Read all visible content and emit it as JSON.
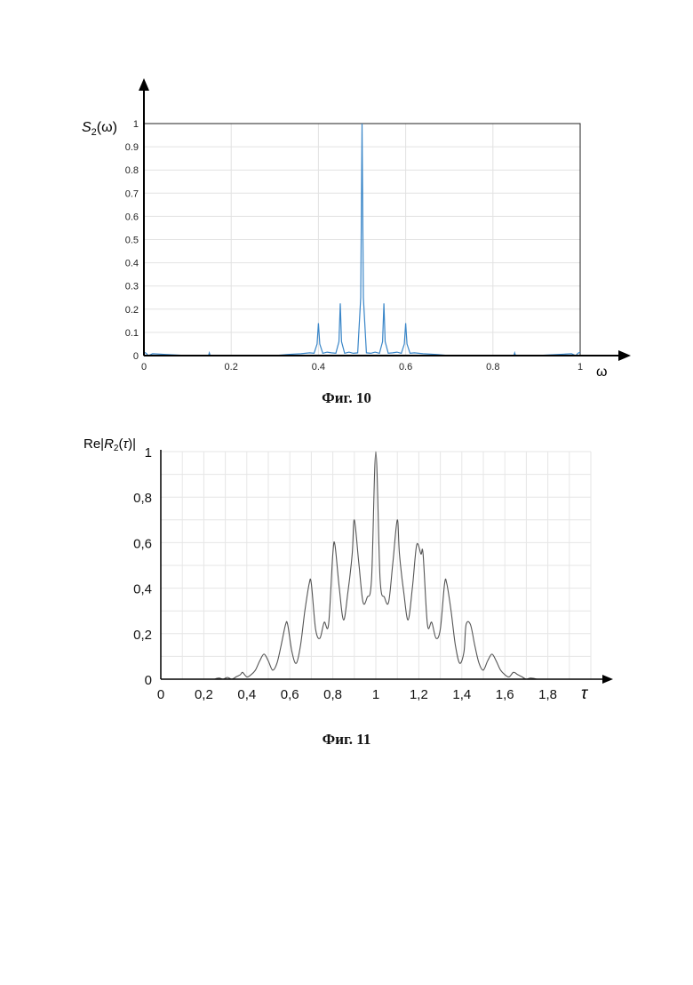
{
  "figures": [
    {
      "caption": "Фиг. 10",
      "ylabel_prefix": "S",
      "ylabel_sub": "2",
      "ylabel_suffix": "(ω)",
      "xlabel": "ω",
      "line_color": "#3a86c8",
      "chart_data": {
        "type": "line",
        "xlim": [
          0,
          1
        ],
        "ylim": [
          0,
          1
        ],
        "grid": true,
        "x_ticks": [
          0,
          0.2,
          0.4,
          0.6,
          0.8,
          1
        ],
        "x_tick_labels": [
          "0",
          "0.2",
          "0.4",
          "0.6",
          "0.8",
          "1"
        ],
        "y_ticks": [
          0,
          0.1,
          0.2,
          0.3,
          0.4,
          0.5,
          0.6,
          0.7,
          0.8,
          0.9,
          1
        ],
        "y_tick_labels": [
          "0",
          "0.1",
          "0.2",
          "0.3",
          "0.4",
          "0.5",
          "0.6",
          "0.7",
          "0.8",
          "0.9",
          "1"
        ],
        "series": [
          {
            "x": [
              0,
              0.005,
              0.01,
              0.02,
              0.05,
              0.1,
              0.148,
              0.15,
              0.152,
              0.2,
              0.25,
              0.3,
              0.33,
              0.36,
              0.38,
              0.39,
              0.397,
              0.4,
              0.403,
              0.41,
              0.42,
              0.43,
              0.44,
              0.447,
              0.45,
              0.453,
              0.46,
              0.47,
              0.48,
              0.49,
              0.497,
              0.5,
              0.503,
              0.51,
              0.52,
              0.53,
              0.54,
              0.547,
              0.55,
              0.553,
              0.56,
              0.57,
              0.58,
              0.59,
              0.597,
              0.6,
              0.603,
              0.61,
              0.62,
              0.64,
              0.67,
              0.7,
              0.75,
              0.8,
              0.848,
              0.85,
              0.852,
              0.9,
              0.95,
              0.98,
              0.99,
              0.995,
              1
            ],
            "y": [
              0.015,
              0.01,
              0,
              0.008,
              0.005,
              0,
              0,
              0.012,
              0,
              0,
              0,
              0,
              0.005,
              0.008,
              0.012,
              0.01,
              0.05,
              0.14,
              0.05,
              0.01,
              0.015,
              0.012,
              0.01,
              0.06,
              0.225,
              0.06,
              0.01,
              0.015,
              0.01,
              0.012,
              0.25,
              1,
              0.25,
              0.012,
              0.01,
              0.015,
              0.01,
              0.06,
              0.225,
              0.06,
              0.01,
              0.012,
              0.015,
              0.01,
              0.05,
              0.14,
              0.05,
              0.01,
              0.012,
              0.008,
              0.005,
              0,
              0,
              0,
              0,
              0.012,
              0,
              0,
              0.005,
              0.008,
              0,
              0.01,
              0.015
            ]
          }
        ]
      }
    },
    {
      "caption": "Фиг. 11",
      "ylabel_prefix": "Re|",
      "ylabel_italic": "R",
      "ylabel_sub": "2",
      "ylabel_paren": "(",
      "ylabel_tau": "τ",
      "ylabel_end": ")|",
      "xlabel": "τ",
      "line_color": "#555555",
      "chart_data": {
        "type": "line",
        "xlim": [
          0,
          2
        ],
        "ylim": [
          0,
          1
        ],
        "grid": true,
        "x_ticks": [
          0,
          0.2,
          0.4,
          0.6,
          0.8,
          1,
          1.2,
          1.4,
          1.6,
          1.8
        ],
        "x_tick_labels": [
          "0",
          "0,2",
          "0,4",
          "0,6",
          "0,8",
          "1",
          "1,2",
          "1,4",
          "1,6",
          "1,8"
        ],
        "y_ticks": [
          0,
          0.2,
          0.4,
          0.6,
          0.8,
          1
        ],
        "y_tick_labels": [
          "0",
          "0,2",
          "0,4",
          "0,6",
          "0,8",
          "1"
        ],
        "series": [
          {
            "x": [
              0.25,
              0.27,
              0.29,
              0.31,
              0.33,
              0.35,
              0.37,
              0.38,
              0.4,
              0.42,
              0.44,
              0.46,
              0.48,
              0.5,
              0.52,
              0.54,
              0.56,
              0.58,
              0.59,
              0.61,
              0.63,
              0.65,
              0.67,
              0.69,
              0.7,
              0.72,
              0.74,
              0.76,
              0.78,
              0.8,
              0.81,
              0.83,
              0.85,
              0.87,
              0.89,
              0.9,
              0.92,
              0.94,
              0.96,
              0.98,
              1,
              1.02,
              1.04,
              1.06,
              1.08,
              1.1,
              1.11,
              1.13,
              1.15,
              1.17,
              1.19,
              1.21,
              1.22,
              1.24,
              1.26,
              1.28,
              1.3,
              1.32,
              1.33,
              1.35,
              1.37,
              1.39,
              1.41,
              1.42,
              1.44,
              1.46,
              1.48,
              1.5,
              1.52,
              1.54,
              1.56,
              1.58,
              1.6,
              1.62,
              1.64,
              1.66,
              1.68,
              1.7,
              1.72,
              1.75
            ],
            "y": [
              0,
              0.005,
              0,
              0.008,
              0,
              0.01,
              0.02,
              0.03,
              0.01,
              0.02,
              0.04,
              0.08,
              0.11,
              0.08,
              0.04,
              0.07,
              0.15,
              0.24,
              0.24,
              0.12,
              0.07,
              0.15,
              0.3,
              0.42,
              0.42,
              0.22,
              0.18,
              0.25,
              0.24,
              0.55,
              0.59,
              0.4,
              0.26,
              0.38,
              0.55,
              0.7,
              0.52,
              0.34,
              0.36,
              0.44,
              1,
              0.44,
              0.36,
              0.34,
              0.52,
              0.7,
              0.55,
              0.38,
              0.26,
              0.4,
              0.59,
              0.55,
              0.55,
              0.24,
              0.25,
              0.18,
              0.22,
              0.42,
              0.42,
              0.3,
              0.15,
              0.07,
              0.12,
              0.24,
              0.24,
              0.15,
              0.07,
              0.04,
              0.08,
              0.11,
              0.08,
              0.04,
              0.02,
              0.01,
              0.03,
              0.02,
              0.01,
              0,
              0.005,
              0
            ]
          }
        ]
      }
    }
  ]
}
